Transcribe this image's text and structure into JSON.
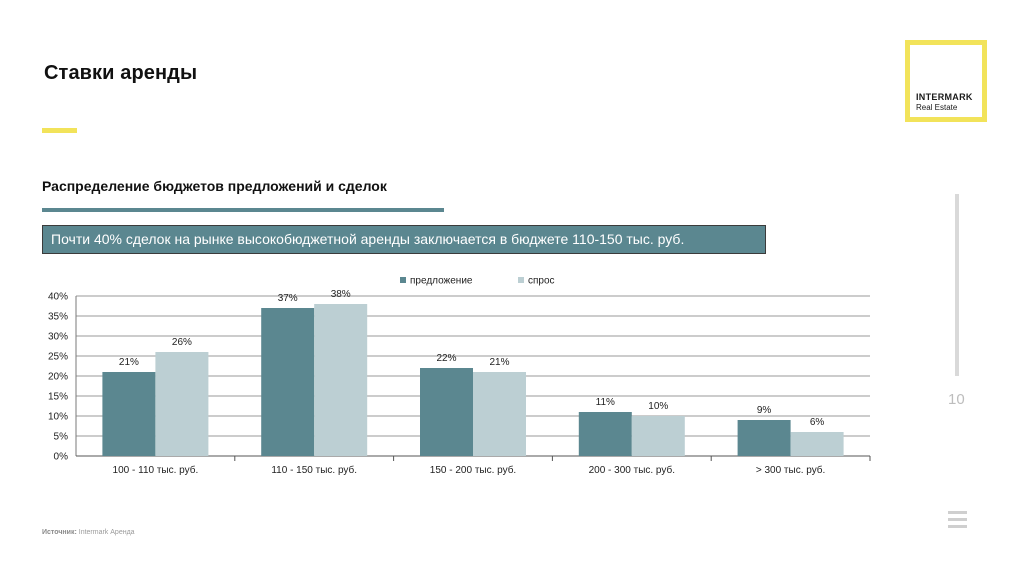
{
  "header": {
    "title": "Ставки аренды",
    "subtitle": "Распределение бюджетов предложений и сделок",
    "banner": "Почти 40% сделок на рынке высокобюджетной аренды заключается в бюджете 110-150 тыс. руб."
  },
  "logo": {
    "brand": "INTERMARK",
    "sub": "Real Estate",
    "color": "#f2e35a"
  },
  "page_number": "10",
  "footer": {
    "source_label": "Источник:",
    "source_value": "Intermark Аренда"
  },
  "chart_data": {
    "type": "bar",
    "categories": [
      "100 - 110 тыс. руб.",
      "110 - 150 тыс. руб.",
      "150 - 200 тыс. руб.",
      "200 - 300 тыс. руб.",
      "> 300 тыс. руб."
    ],
    "series": [
      {
        "name": "предложение",
        "values": [
          21,
          37,
          22,
          11,
          9
        ],
        "labels": [
          "21%",
          "37%",
          "22%",
          "11%",
          "9%"
        ],
        "color": "#5b8790"
      },
      {
        "name": "спрос",
        "values": [
          26,
          38,
          21,
          10,
          6
        ],
        "labels": [
          "26%",
          "38%",
          "21%",
          "10%",
          "6%"
        ],
        "color": "#bccfd3"
      }
    ],
    "yticks": [
      "0%",
      "5%",
      "10%",
      "15%",
      "20%",
      "25%",
      "30%",
      "35%",
      "40%"
    ],
    "ylim": [
      0,
      40
    ],
    "grid": true,
    "legend": "top-center"
  }
}
